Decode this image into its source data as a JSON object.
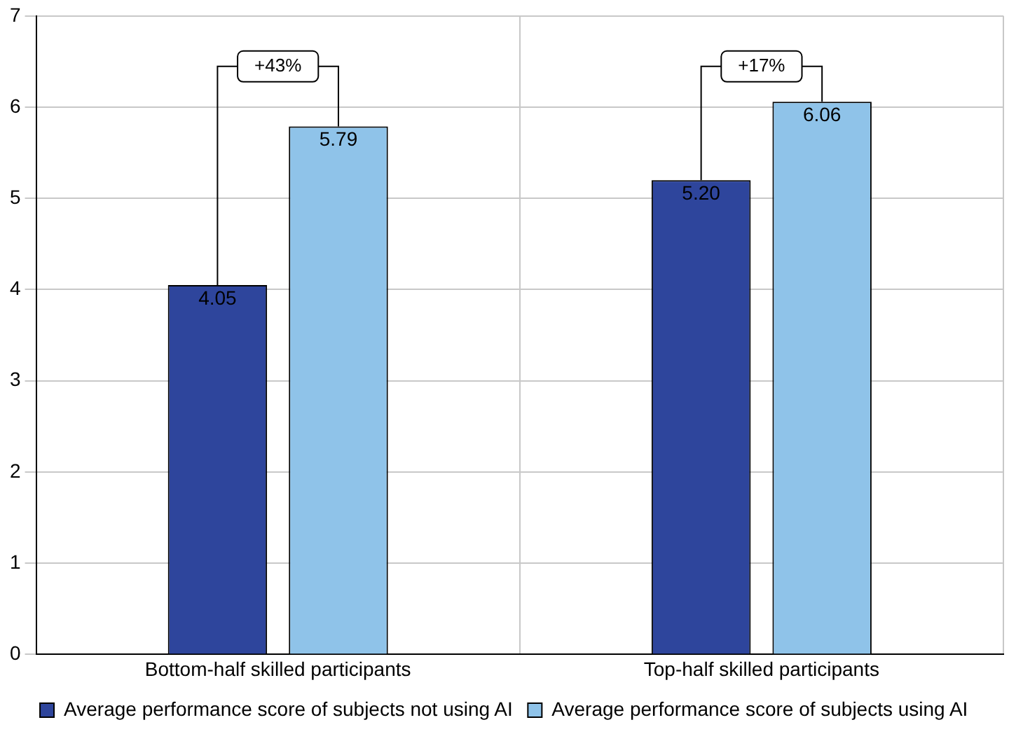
{
  "chart_data": {
    "type": "bar",
    "categories": [
      "Bottom-half skilled participants",
      "Top-half skilled participants"
    ],
    "series": [
      {
        "name": "Average performance score of subjects not using AI",
        "color": "#2e459c",
        "values": [
          4.05,
          5.2
        ],
        "value_labels": [
          "4.05",
          "5.20"
        ]
      },
      {
        "name": "Average performance score of subjects using AI",
        "color": "#8fc3e9",
        "values": [
          5.79,
          6.06
        ],
        "value_labels": [
          "5.79",
          "6.06"
        ]
      }
    ],
    "ylim": [
      0,
      7
    ],
    "yticks": [
      0,
      1,
      2,
      3,
      4,
      5,
      6,
      7
    ],
    "grid": true,
    "legend": "bottom",
    "annotations": [
      "+43%",
      "+17%"
    ]
  }
}
